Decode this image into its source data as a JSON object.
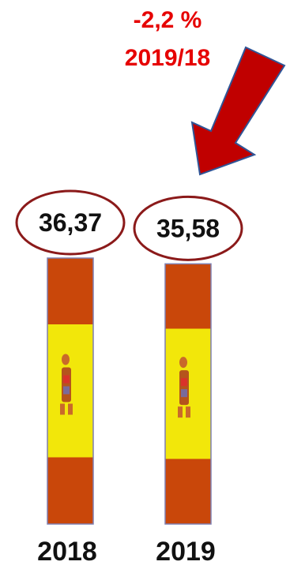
{
  "chart_data": {
    "type": "bar",
    "categories": [
      "2018",
      "2019"
    ],
    "values": [
      36.37,
      35.58
    ],
    "value_labels": [
      "36,37",
      "35,58"
    ],
    "annotation": {
      "change": "-2,2 %",
      "period": "2019/18"
    },
    "colors": {
      "flag_red": "#c9470a",
      "flag_yellow": "#f2e70a",
      "arrow_fill": "#c00000",
      "arrow_stroke": "#2f5597",
      "circle_stroke": "#8b1a1a",
      "annotation_text": "#e60000",
      "bar_outline": "#7f7fb0"
    },
    "bar_style": "spanish-flag",
    "grid": false,
    "legend": "none"
  }
}
